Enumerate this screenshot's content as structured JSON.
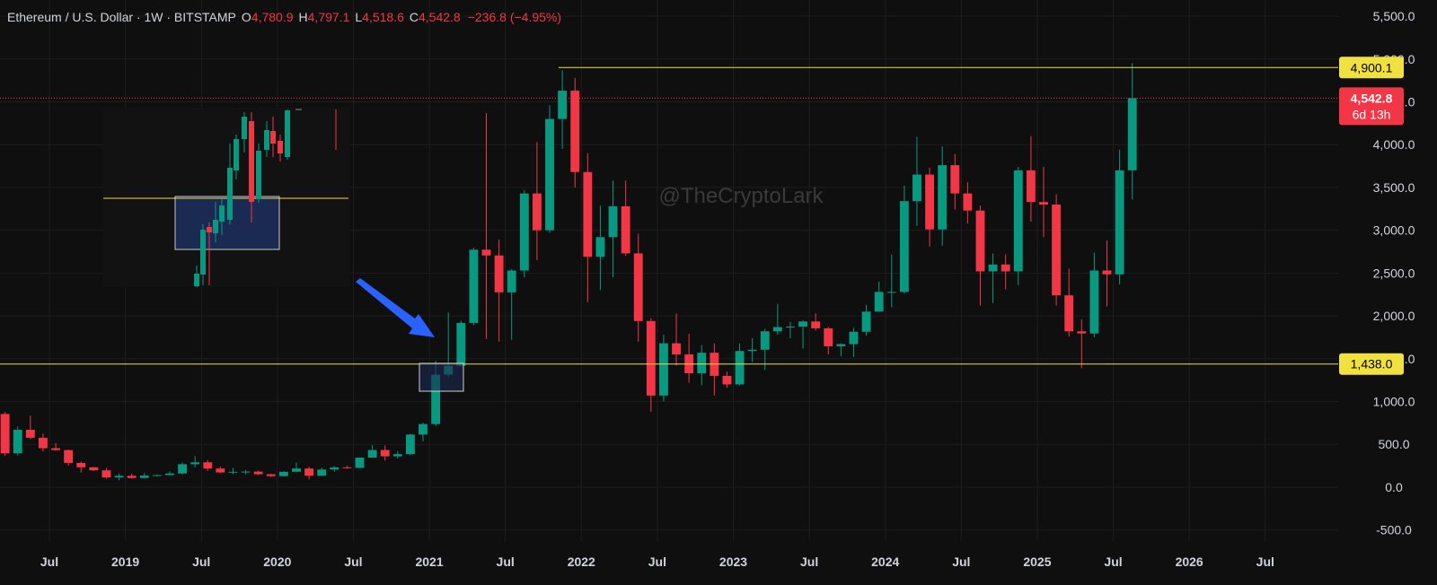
{
  "header": {
    "symbol": "Ethereum / U.S. Dollar · 1W · BITSTAMP",
    "ohlc": [
      {
        "key": "O",
        "value": "4,780.9"
      },
      {
        "key": "H",
        "value": "4,797.1"
      },
      {
        "key": "L",
        "value": "4,518.6"
      },
      {
        "key": "C",
        "value": "4,542.8"
      }
    ],
    "change": "−236.8 (−4.95%)"
  },
  "chart_data": {
    "type": "candlestick",
    "watermark": "@TheCryptoLark",
    "up_color": "#089981",
    "down_color": "#f23645",
    "grid": true,
    "x": [
      "2018-03",
      "2018-04",
      "2018-05",
      "2018-06",
      "2018-07",
      "2018-08",
      "2018-09",
      "2018-10",
      "2018-11",
      "2018-12",
      "2019-01",
      "2019-02",
      "2019-03",
      "2019-04",
      "2019-05",
      "2019-06",
      "2019-07",
      "2019-08",
      "2019-09",
      "2019-10",
      "2019-11",
      "2019-12",
      "2020-01",
      "2020-02",
      "2020-03",
      "2020-04",
      "2020-05",
      "2020-06",
      "2020-07",
      "2020-08",
      "2020-09",
      "2020-10",
      "2020-11",
      "2020-12",
      "2021-01",
      "2021-02",
      "2021-03",
      "2021-04",
      "2021-05",
      "2021-06",
      "2021-07",
      "2021-08",
      "2021-09",
      "2021-10",
      "2021-11",
      "2021-12",
      "2022-01",
      "2022-02",
      "2022-03",
      "2022-04",
      "2022-05",
      "2022-06",
      "2022-07",
      "2022-08",
      "2022-09",
      "2022-10",
      "2022-11",
      "2022-12",
      "2023-01",
      "2023-02",
      "2023-03",
      "2023-04",
      "2023-05",
      "2023-06",
      "2023-07",
      "2023-08",
      "2023-09",
      "2023-10",
      "2023-11",
      "2023-12",
      "2024-01",
      "2024-02",
      "2024-03",
      "2024-04",
      "2024-05",
      "2024-06",
      "2024-07",
      "2024-08",
      "2024-09",
      "2024-10",
      "2024-11",
      "2024-12",
      "2025-01",
      "2025-02",
      "2025-03",
      "2025-04",
      "2025-05",
      "2025-06",
      "2025-07",
      "2025-08"
    ],
    "open": [
      855,
      395,
      670,
      577,
      455,
      433,
      283,
      232,
      197,
      113,
      133,
      107,
      136,
      141,
      160,
      268,
      290,
      218,
      172,
      180,
      182,
      151,
      129,
      180,
      218,
      133,
      206,
      231,
      225,
      345,
      434,
      360,
      386,
      614,
      737,
      1314,
      1417,
      1918,
      2773,
      2706,
      2275,
      2530,
      3430,
      3000,
      4300,
      4630,
      3680,
      2690,
      2920,
      3280,
      2730,
      1940,
      1070,
      1680,
      1550,
      1330,
      1570,
      1300,
      1200,
      1590,
      1605,
      1820,
      1870,
      1875,
      1935,
      1855,
      1645,
      1670,
      1815,
      2050,
      2280,
      2280,
      3340,
      3650,
      3010,
      3760,
      3430,
      3230,
      2520,
      2600,
      2520,
      3700,
      3330,
      3300,
      2240,
      1820,
      1795,
      2530,
      2485,
      3700
    ],
    "high": [
      880,
      710,
      835,
      625,
      515,
      440,
      300,
      235,
      225,
      160,
      160,
      167,
      147,
      185,
      288,
      361,
      318,
      240,
      225,
      200,
      194,
      155,
      185,
      288,
      240,
      227,
      245,
      253,
      345,
      490,
      487,
      420,
      623,
      755,
      1475,
      2040,
      1944,
      2797,
      4370,
      2890,
      2550,
      3470,
      4030,
      4460,
      4870,
      4780,
      3900,
      3290,
      3580,
      3580,
      2960,
      1970,
      1780,
      2030,
      1790,
      1660,
      1680,
      1350,
      1680,
      1740,
      1850,
      2140,
      1930,
      1950,
      2030,
      1870,
      1680,
      1860,
      2130,
      2400,
      2715,
      3520,
      4090,
      3730,
      3980,
      3890,
      3560,
      3290,
      2730,
      2720,
      3740,
      4100,
      3740,
      3420,
      2550,
      1960,
      2740,
      2880,
      3940,
      4950
    ],
    "low": [
      365,
      370,
      560,
      415,
      425,
      250,
      168,
      190,
      102,
      82,
      100,
      102,
      125,
      140,
      150,
      230,
      190,
      165,
      152,
      152,
      140,
      117,
      127,
      175,
      90,
      130,
      180,
      215,
      222,
      345,
      310,
      335,
      375,
      535,
      715,
      1290,
      1410,
      1890,
      1730,
      1700,
      1720,
      2450,
      2650,
      2970,
      3950,
      3500,
      2160,
      2300,
      2450,
      2700,
      1700,
      880,
      1000,
      1420,
      1220,
      1190,
      1070,
      1160,
      1190,
      1460,
      1370,
      1780,
      1740,
      1620,
      1830,
      1550,
      1530,
      1520,
      1770,
      2050,
      2100,
      2260,
      3050,
      2810,
      2820,
      3240,
      3080,
      2120,
      2150,
      2310,
      2360,
      3100,
      2920,
      2120,
      1760,
      1390,
      1750,
      2110,
      2370,
      3360
    ],
    "close": [
      395,
      670,
      577,
      455,
      433,
      283,
      232,
      197,
      113,
      133,
      107,
      136,
      141,
      160,
      268,
      290,
      218,
      172,
      180,
      182,
      151,
      129,
      180,
      218,
      133,
      206,
      231,
      225,
      345,
      434,
      360,
      386,
      614,
      737,
      1314,
      1417,
      1918,
      2773,
      2706,
      2275,
      2530,
      3430,
      3000,
      4300,
      4630,
      3680,
      2690,
      2920,
      3280,
      2730,
      1940,
      1070,
      1680,
      1550,
      1330,
      1570,
      1300,
      1200,
      1590,
      1605,
      1820,
      1870,
      1875,
      1935,
      1855,
      1645,
      1670,
      1815,
      2050,
      2280,
      2280,
      3340,
      3650,
      3010,
      3760,
      3430,
      3230,
      2520,
      2600,
      2520,
      3700,
      3330,
      3300,
      2240,
      1820,
      1795,
      2530,
      2485,
      3700,
      4542.8
    ],
    "xlim": [
      2018.175,
      2026.98
    ],
    "xticks": [
      {
        "value": 2018.5,
        "label": "Jul"
      },
      2019,
      {
        "value": 2019.5,
        "label": "Jul"
      },
      2020,
      {
        "value": 2020.5,
        "label": "Jul"
      },
      2021,
      {
        "value": 2021.5,
        "label": "Jul"
      },
      2022,
      {
        "value": 2022.5,
        "label": "Jul"
      },
      2023,
      {
        "value": 2023.5,
        "label": "Jul"
      },
      2024,
      {
        "value": 2024.5,
        "label": "Jul"
      },
      2025,
      {
        "value": 2025.5,
        "label": "Jul"
      },
      2026,
      {
        "value": 2026.5,
        "label": "Jul"
      }
    ],
    "ylim": [
      -629,
      5689
    ],
    "yticks": [
      {
        "value": -500,
        "label": "-500.0"
      },
      {
        "value": 0,
        "label": "0.0"
      },
      {
        "value": 500,
        "label": "500.0"
      },
      {
        "value": 1000,
        "label": "1,000.0"
      },
      {
        "value": 1500,
        "label": "1,500.0"
      },
      {
        "value": 2000,
        "label": "2,000.0"
      },
      {
        "value": 2500,
        "label": "2,500.0"
      },
      {
        "value": 3000,
        "label": "3,000.0"
      },
      {
        "value": 3500,
        "label": "3,500.0"
      },
      {
        "value": 4000,
        "label": "4,000.0"
      },
      {
        "value": 4500,
        "label": "4,500.0"
      },
      {
        "value": 5000,
        "label": "5,000.0"
      },
      {
        "value": 5500,
        "label": "5,500.0"
      }
    ],
    "hlines": [
      {
        "value": 4900.1,
        "label": "4,900.1",
        "color": "#f0e040"
      },
      {
        "value": 1438.0,
        "label": "1,438.0",
        "color": "#f0e040"
      }
    ],
    "last_price": {
      "value": 4542.8,
      "label": "4,542.8",
      "countdown": "6d 13h",
      "color": "#f23645"
    }
  }
}
